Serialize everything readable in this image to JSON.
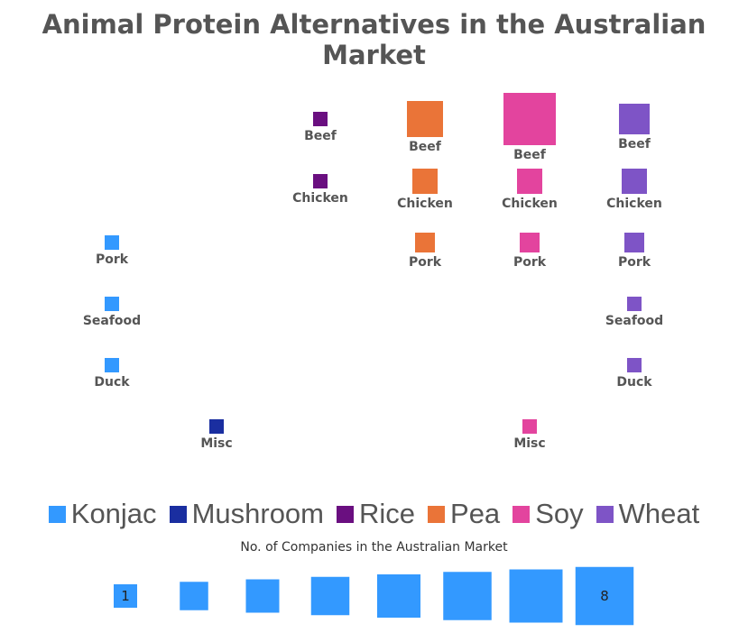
{
  "chart_data": {
    "type": "scatter",
    "title": "Animal Protein Alternatives in the Australian Market",
    "columns": [
      "Konjac",
      "Mushroom",
      "Rice",
      "Pea",
      "Soy",
      "Wheat"
    ],
    "rows": [
      "Beef",
      "Chicken",
      "Pork",
      "Seafood",
      "Duck",
      "Misc"
    ],
    "colors": {
      "Konjac": "#3399ff",
      "Mushroom": "#1a2ea0",
      "Rice": "#6a0f80",
      "Pea": "#ea7438",
      "Soy": "#e3449e",
      "Wheat": "#7e54c6"
    },
    "points": [
      {
        "source": "Konjac",
        "product": "Pork",
        "companies": 1
      },
      {
        "source": "Konjac",
        "product": "Seafood",
        "companies": 1
      },
      {
        "source": "Konjac",
        "product": "Duck",
        "companies": 1
      },
      {
        "source": "Mushroom",
        "product": "Misc",
        "companies": 1
      },
      {
        "source": "Rice",
        "product": "Beef",
        "companies": 1
      },
      {
        "source": "Rice",
        "product": "Chicken",
        "companies": 1
      },
      {
        "source": "Pea",
        "product": "Beef",
        "companies": 5
      },
      {
        "source": "Pea",
        "product": "Chicken",
        "companies": 3
      },
      {
        "source": "Pea",
        "product": "Pork",
        "companies": 2
      },
      {
        "source": "Soy",
        "product": "Beef",
        "companies": 8
      },
      {
        "source": "Soy",
        "product": "Chicken",
        "companies": 3
      },
      {
        "source": "Soy",
        "product": "Pork",
        "companies": 2
      },
      {
        "source": "Soy",
        "product": "Misc",
        "companies": 1
      },
      {
        "source": "Wheat",
        "product": "Beef",
        "companies": 4
      },
      {
        "source": "Wheat",
        "product": "Chicken",
        "companies": 3
      },
      {
        "source": "Wheat",
        "product": "Pork",
        "companies": 2
      },
      {
        "source": "Wheat",
        "product": "Seafood",
        "companies": 1
      },
      {
        "source": "Wheat",
        "product": "Duck",
        "companies": 1
      }
    ],
    "legend": [
      "Konjac",
      "Mushroom",
      "Rice",
      "Pea",
      "Soy",
      "Wheat"
    ],
    "size_legend": {
      "title": "No. of Companies in the Australian Market",
      "values": [
        1,
        2,
        3,
        4,
        5,
        6,
        7,
        8
      ],
      "labels": [
        "1",
        "",
        "",
        "",
        "",
        "",
        "",
        "8"
      ],
      "color": "#3399ff"
    }
  }
}
